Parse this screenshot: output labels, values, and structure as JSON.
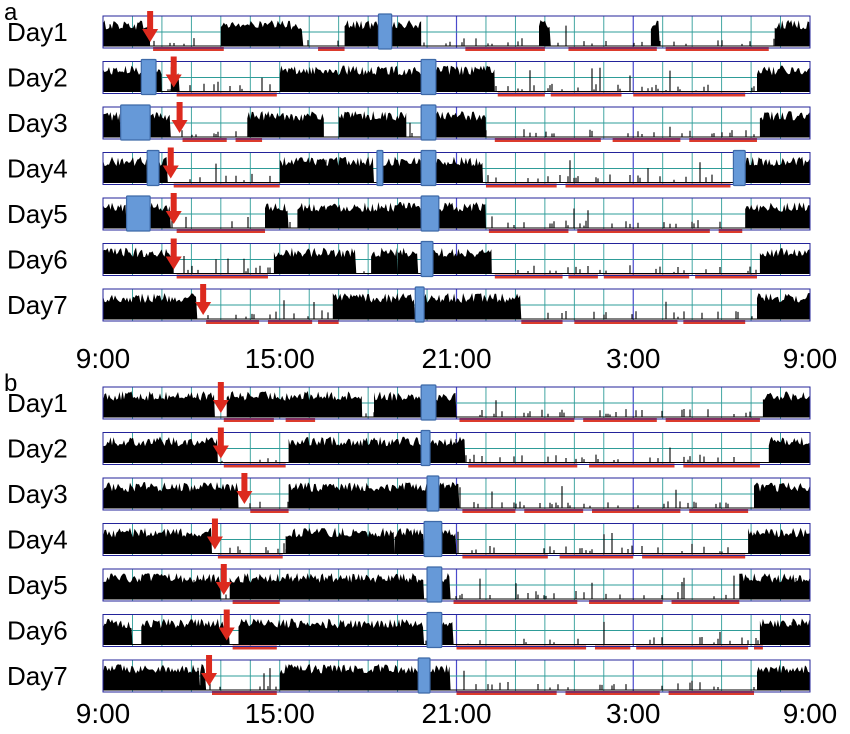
{
  "colors": {
    "activity": "#000000",
    "grid": "#2e9c98",
    "frame": "#23239a",
    "midline": "#4a4acc",
    "marker_fill": "#6699d8",
    "marker_stroke": "#3e6aa8",
    "arrow": "#dc2a1e",
    "sleep_bar": "#dc3b2c"
  },
  "chart_data": [
    {
      "type": "actogram",
      "panel": "a",
      "xlim_hours": [
        9,
        33
      ],
      "x_tick_labels": [
        "9:00",
        "15:00",
        "21:00",
        "3:00",
        "9:00"
      ],
      "x_tick_hours": [
        9,
        15,
        21,
        27,
        33
      ],
      "grid_interval_hours": 1,
      "rows": [
        {
          "day": "Day1",
          "arrow_hour": 10.6,
          "markers": [
            [
              18.35,
              18.8
            ]
          ],
          "activity_segments": [
            [
              9.0,
              10.6
            ],
            [
              13.0,
              15.8
            ],
            [
              17.2,
              19.8
            ],
            [
              23.8,
              24.2
            ],
            [
              27.6,
              27.9
            ],
            [
              31.8,
              33.0
            ]
          ],
          "sleep_bars": [
            [
              10.7,
              13.1
            ],
            [
              16.3,
              17.2
            ],
            [
              21.3,
              24.0
            ],
            [
              24.8,
              27.8
            ],
            [
              28.1,
              31.6
            ]
          ]
        },
        {
          "day": "Day2",
          "arrow_hour": 11.4,
          "markers": [
            [
              10.3,
              10.8
            ],
            [
              19.8,
              20.3
            ]
          ],
          "activity_segments": [
            [
              9.0,
              11.0
            ],
            [
              11.3,
              11.6
            ],
            [
              15.0,
              19.8
            ],
            [
              20.3,
              22.3
            ],
            [
              31.2,
              33.0
            ]
          ],
          "sleep_bars": [
            [
              11.5,
              14.9
            ],
            [
              22.4,
              24.0
            ],
            [
              24.2,
              26.6
            ],
            [
              27.0,
              30.8
            ]
          ]
        },
        {
          "day": "Day3",
          "arrow_hour": 11.6,
          "markers": [
            [
              9.6,
              10.6
            ],
            [
              19.8,
              20.3
            ]
          ],
          "activity_segments": [
            [
              9.0,
              9.6
            ],
            [
              10.6,
              11.3
            ],
            [
              13.9,
              16.5
            ],
            [
              17.0,
              19.3
            ],
            [
              19.8,
              22.0
            ],
            [
              31.3,
              33.0
            ]
          ],
          "sleep_bars": [
            [
              11.7,
              13.2
            ],
            [
              13.5,
              14.4
            ],
            [
              22.3,
              25.9
            ],
            [
              26.3,
              28.6
            ],
            [
              28.9,
              31.2
            ]
          ]
        },
        {
          "day": "Day4",
          "arrow_hour": 11.3,
          "markers": [
            [
              10.5,
              10.9
            ],
            [
              18.3,
              18.5
            ],
            [
              19.8,
              20.3
            ],
            [
              30.4,
              30.8
            ]
          ],
          "activity_segments": [
            [
              9.0,
              10.5
            ],
            [
              10.9,
              11.2
            ],
            [
              15.0,
              18.2
            ],
            [
              18.5,
              19.8
            ],
            [
              20.3,
              21.9
            ],
            [
              30.8,
              33.0
            ]
          ],
          "sleep_bars": [
            [
              11.4,
              15.0
            ],
            [
              22.0,
              24.4
            ],
            [
              24.7,
              30.3
            ]
          ]
        },
        {
          "day": "Day5",
          "arrow_hour": 11.4,
          "markers": [
            [
              9.8,
              10.6
            ],
            [
              19.8,
              20.4
            ]
          ],
          "activity_segments": [
            [
              9.0,
              9.8
            ],
            [
              10.6,
              11.3
            ],
            [
              14.5,
              15.3
            ],
            [
              15.6,
              19.8
            ],
            [
              20.4,
              22.0
            ],
            [
              30.8,
              33.0
            ]
          ],
          "sleep_bars": [
            [
              11.5,
              14.5
            ],
            [
              22.1,
              24.8
            ],
            [
              25.1,
              29.6
            ],
            [
              29.9,
              30.7
            ]
          ]
        },
        {
          "day": "Day6",
          "arrow_hour": 11.4,
          "markers": [
            [
              19.8,
              20.2
            ]
          ],
          "activity_segments": [
            [
              9.0,
              11.4
            ],
            [
              14.8,
              17.6
            ],
            [
              18.1,
              19.0
            ],
            [
              19.0,
              19.7
            ],
            [
              20.2,
              22.2
            ],
            [
              31.3,
              33.0
            ]
          ],
          "sleep_bars": [
            [
              11.5,
              14.6
            ],
            [
              22.3,
              24.6
            ],
            [
              24.8,
              25.8
            ],
            [
              26.0,
              28.9
            ],
            [
              29.1,
              31.2
            ]
          ]
        },
        {
          "day": "Day7",
          "arrow_hour": 12.4,
          "markers": [
            [
              19.6,
              19.9
            ]
          ],
          "activity_segments": [
            [
              9.0,
              12.2
            ],
            [
              16.8,
              19.6
            ],
            [
              19.9,
              23.2
            ],
            [
              31.2,
              33.0
            ]
          ],
          "sleep_bars": [
            [
              12.5,
              14.3
            ],
            [
              14.6,
              16.1
            ],
            [
              16.3,
              17.0
            ],
            [
              23.2,
              24.6
            ],
            [
              25.0,
              28.5
            ],
            [
              28.7,
              30.8
            ]
          ]
        }
      ]
    },
    {
      "type": "actogram",
      "panel": "b",
      "xlim_hours": [
        9,
        33
      ],
      "x_tick_labels": [
        "9:00",
        "15:00",
        "21:00",
        "3:00",
        "9:00"
      ],
      "x_tick_hours": [
        9,
        15,
        21,
        27,
        33
      ],
      "grid_interval_hours": 1,
      "rows": [
        {
          "day": "Day1",
          "arrow_hour": 13.0,
          "markers": [
            [
              19.8,
              20.3
            ]
          ],
          "activity_segments": [
            [
              9.0,
              12.8
            ],
            [
              13.2,
              17.8
            ],
            [
              18.2,
              19.8
            ],
            [
              20.3,
              21.0
            ],
            [
              31.4,
              33.0
            ]
          ],
          "sleep_bars": [
            [
              13.1,
              14.8
            ],
            [
              15.2,
              16.2
            ],
            [
              21.1,
              25.0
            ],
            [
              25.3,
              27.8
            ],
            [
              28.1,
              31.3
            ]
          ]
        },
        {
          "day": "Day2",
          "arrow_hour": 13.0,
          "markers": [
            [
              19.8,
              20.1
            ]
          ],
          "activity_segments": [
            [
              9.0,
              12.9
            ],
            [
              15.3,
              19.8
            ],
            [
              20.1,
              21.3
            ],
            [
              31.6,
              33.0
            ]
          ],
          "sleep_bars": [
            [
              13.1,
              15.2
            ],
            [
              21.4,
              25.1
            ],
            [
              25.5,
              28.4
            ],
            [
              28.7,
              31.3
            ]
          ]
        },
        {
          "day": "Day3",
          "arrow_hour": 13.8,
          "markers": [
            [
              20.0,
              20.4
            ]
          ],
          "activity_segments": [
            [
              9.0,
              13.6
            ],
            [
              15.3,
              20.0
            ],
            [
              20.4,
              21.1
            ],
            [
              31.1,
              33.0
            ]
          ],
          "sleep_bars": [
            [
              14.0,
              15.3
            ],
            [
              21.2,
              23.0
            ],
            [
              23.3,
              25.3
            ],
            [
              25.6,
              28.6
            ],
            [
              28.9,
              30.9
            ]
          ]
        },
        {
          "day": "Day4",
          "arrow_hour": 12.8,
          "markers": [
            [
              19.9,
              20.5
            ]
          ],
          "activity_segments": [
            [
              9.0,
              12.7
            ],
            [
              15.2,
              18.9
            ],
            [
              18.9,
              19.9
            ],
            [
              20.5,
              21.0
            ],
            [
              30.9,
              33.0
            ]
          ],
          "sleep_bars": [
            [
              12.9,
              15.1
            ],
            [
              21.2,
              24.1
            ],
            [
              24.5,
              27.0
            ],
            [
              27.3,
              30.8
            ]
          ]
        },
        {
          "day": "Day5",
          "arrow_hour": 13.1,
          "markers": [
            [
              20.0,
              20.5
            ]
          ],
          "activity_segments": [
            [
              9.0,
              13.0
            ],
            [
              13.3,
              19.9
            ],
            [
              20.5,
              20.8
            ],
            [
              30.6,
              33.0
            ]
          ],
          "sleep_bars": [
            [
              13.4,
              15.0
            ],
            [
              20.9,
              25.1
            ],
            [
              25.5,
              28.0
            ],
            [
              28.3,
              30.6
            ]
          ]
        },
        {
          "day": "Day6",
          "arrow_hour": 13.2,
          "markers": [
            [
              20.0,
              20.5
            ]
          ],
          "activity_segments": [
            [
              9.0,
              10.0
            ],
            [
              10.3,
              13.3
            ],
            [
              13.6,
              19.9
            ],
            [
              20.5,
              20.9
            ],
            [
              31.3,
              33.0
            ]
          ],
          "sleep_bars": [
            [
              13.4,
              14.9
            ],
            [
              21.0,
              25.4
            ],
            [
              25.7,
              26.9
            ],
            [
              27.1,
              30.9
            ],
            [
              31.1,
              31.4
            ]
          ]
        },
        {
          "day": "Day7",
          "arrow_hour": 12.6,
          "markers": [
            [
              19.7,
              20.1
            ]
          ],
          "activity_segments": [
            [
              9.0,
              12.3
            ],
            [
              12.3,
              12.5
            ],
            [
              15.0,
              19.7
            ],
            [
              20.1,
              20.8
            ],
            [
              31.2,
              33.0
            ]
          ],
          "sleep_bars": [
            [
              12.7,
              14.9
            ],
            [
              21.0,
              24.4
            ],
            [
              24.7,
              27.9
            ],
            [
              28.2,
              31.1
            ]
          ]
        }
      ]
    }
  ]
}
